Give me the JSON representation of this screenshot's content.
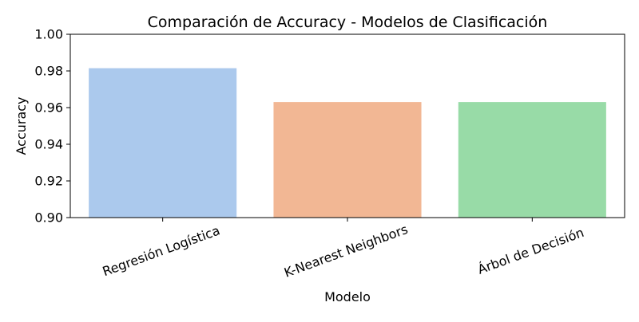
{
  "chart_data": {
    "type": "bar",
    "title": "Comparación de Accuracy - Modelos de Clasificación",
    "xlabel": "Modelo",
    "ylabel": "Accuracy",
    "categories": [
      "Regresión Logística",
      "K-Nearest Neighbors",
      "Árbol de Decisión"
    ],
    "values": [
      0.9815,
      0.963,
      0.963
    ],
    "colors": [
      "#abc9ed",
      "#f2b794",
      "#98dba7"
    ],
    "ylim": [
      0.9,
      1.0
    ],
    "yticks": [
      "0.90",
      "0.92",
      "0.94",
      "0.96",
      "0.98",
      "1.00"
    ],
    "grid": false,
    "legend": "none"
  }
}
